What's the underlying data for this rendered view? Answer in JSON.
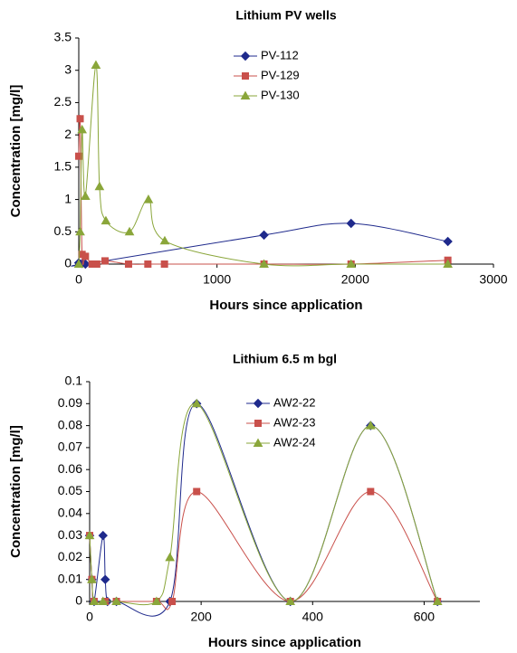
{
  "chart_data": [
    {
      "type": "line",
      "title": "Lithium PV wells",
      "x_label": "Hours since application",
      "y_label": "Concentration [mg/l]",
      "xlim": [
        0,
        3000
      ],
      "xticks": [
        0,
        1000,
        2000,
        3000
      ],
      "ylim": [
        0,
        3.5
      ],
      "yticks": [
        0,
        0.5,
        1,
        1.5,
        2,
        2.5,
        3,
        3.5
      ],
      "series": [
        {
          "name": "PV-112",
          "color": "#1f2a8c",
          "marker": "diamond",
          "x": [
            0,
            24,
            48,
            1340,
            1970,
            2670
          ],
          "values": [
            0.02,
            0.01,
            0,
            0.45,
            0.63,
            0.35
          ]
        },
        {
          "name": "PV-129",
          "color": "#c9504b",
          "marker": "square",
          "x": [
            0,
            10,
            24,
            48,
            96,
            130,
            190,
            360,
            500,
            620,
            1340,
            1970,
            2670
          ],
          "values": [
            1.67,
            2.25,
            0.15,
            0.12,
            0,
            0,
            0.05,
            0,
            0,
            0,
            0,
            0,
            0.06
          ]
        },
        {
          "name": "PV-130",
          "color": "#8aa63a",
          "marker": "triangle",
          "x": [
            0,
            10,
            24,
            48,
            124,
            150,
            196,
            367,
            504,
            622,
            1340,
            1970,
            2670
          ],
          "values": [
            0,
            0.5,
            2.08,
            1.05,
            3.08,
            1.2,
            0.67,
            0.5,
            1.0,
            0.36,
            0,
            0,
            0
          ]
        }
      ]
    },
    {
      "type": "line",
      "title": "Lithium 6.5 m bgl",
      "x_label": "Hours since application",
      "y_label": "Concentration [mg/l]",
      "xlim": [
        0,
        700
      ],
      "xticks": [
        0,
        200,
        400,
        600
      ],
      "ylim": [
        0,
        0.1
      ],
      "yticks": [
        0,
        0.01,
        0.02,
        0.03,
        0.04,
        0.05,
        0.06,
        0.07,
        0.08,
        0.09,
        0.1
      ],
      "series": [
        {
          "name": "AW2-22",
          "color": "#1f2a8c",
          "marker": "diamond",
          "x": [
            0,
            4,
            8,
            24,
            28,
            32,
            48,
            144,
            192,
            360,
            504,
            624
          ],
          "values": [
            0.03,
            0.01,
            0,
            0.03,
            0.01,
            0,
            0,
            0,
            0.09,
            0,
            0.08,
            0
          ]
        },
        {
          "name": "AW2-23",
          "color": "#c9504b",
          "marker": "square",
          "x": [
            0,
            4,
            8,
            28,
            48,
            120,
            148,
            192,
            360,
            504,
            624
          ],
          "values": [
            0.03,
            0.01,
            0,
            0,
            0,
            0,
            0,
            0.05,
            0,
            0.05,
            0
          ]
        },
        {
          "name": "AW2-24",
          "color": "#8aa63a",
          "marker": "triangle",
          "x": [
            0,
            4,
            8,
            24,
            48,
            120,
            144,
            192,
            360,
            504,
            624
          ],
          "values": [
            0.03,
            0.01,
            0,
            0,
            0,
            0,
            0.02,
            0.09,
            0,
            0.08,
            0
          ]
        }
      ]
    }
  ]
}
